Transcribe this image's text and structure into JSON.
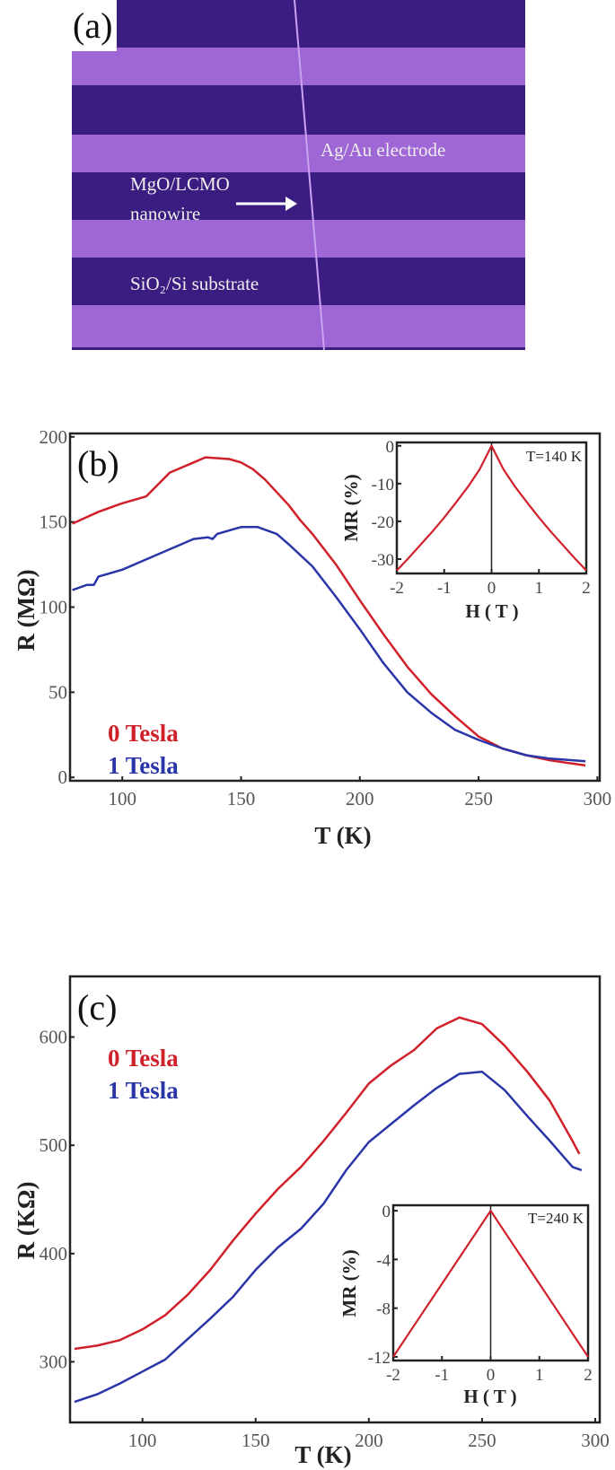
{
  "panel_a": {
    "label": "(a)",
    "electrode_label": "Ag/Au electrode",
    "nanowire_label_line1": "MgO/LCMO",
    "nanowire_label_line2": "nanowire",
    "substrate_label": "SiO₂/Si substrate",
    "colors": {
      "substrate": "#3b1d82",
      "electrode": "#9f66d6",
      "nanowire": "#c9a2f0"
    }
  },
  "chart_data": [
    {
      "type": "line",
      "panel_label": "(b)",
      "xlabel": "T (K)",
      "ylabel": "R (MΩ)",
      "xlim": [
        78,
        301
      ],
      "ylim": [
        -2,
        202
      ],
      "xticks": [
        100,
        150,
        200,
        250,
        300
      ],
      "yticks": [
        0,
        50,
        100,
        150,
        200
      ],
      "grid": false,
      "legend_position": "bottom-left",
      "series": [
        {
          "name": "0 Tesla",
          "color": "#d0202a",
          "x": [
            79,
            90,
            100,
            110,
            120,
            130,
            135,
            145,
            150,
            155,
            160,
            170,
            175,
            180,
            190,
            200,
            210,
            220,
            230,
            240,
            250,
            260,
            270,
            280,
            290,
            295
          ],
          "y": [
            149,
            156,
            161,
            165,
            179,
            185,
            188,
            187,
            185,
            181,
            175,
            160,
            151,
            143,
            125,
            104,
            84,
            65,
            49,
            36,
            24,
            17,
            13,
            10,
            8,
            7
          ]
        },
        {
          "name": "1 Tesla",
          "color": "#2a36a8",
          "x": [
            79,
            85,
            88,
            90,
            100,
            110,
            120,
            130,
            136,
            138,
            140,
            150,
            157,
            165,
            170,
            180,
            190,
            200,
            210,
            220,
            230,
            240,
            250,
            260,
            270,
            280,
            290,
            295
          ],
          "y": [
            110,
            113,
            113,
            118,
            122,
            128,
            134,
            140,
            141,
            140,
            143,
            147,
            147,
            143,
            137,
            124,
            106,
            87,
            67,
            50,
            38,
            28,
            22,
            17,
            13,
            11,
            10,
            9.5
          ]
        }
      ]
    },
    {
      "type": "line",
      "annotation": "T=140 K",
      "xlabel": "H ( T )",
      "ylabel": "MR (%)",
      "xlim": [
        -2,
        2
      ],
      "ylim": [
        -33.8,
        0.9
      ],
      "xticks": [
        -2,
        -1,
        0,
        1,
        2
      ],
      "yticks": [
        0,
        -10,
        -20,
        -30
      ],
      "series": [
        {
          "color": "#d0202a",
          "x": [
            -2,
            -1.75,
            -1.5,
            -1.25,
            -1,
            -0.75,
            -0.5,
            -0.25,
            0,
            0.25,
            0.5,
            0.75,
            1,
            1.25,
            1.5,
            1.75,
            2
          ],
          "y": [
            -33,
            -29.7,
            -26.2,
            -22.7,
            -19,
            -15,
            -10.9,
            -6.2,
            0,
            -6.2,
            -10.9,
            -15,
            -19,
            -22.7,
            -26.2,
            -29.7,
            -33
          ]
        }
      ]
    },
    {
      "type": "line",
      "panel_label": "(c)",
      "xlabel": "T (K)",
      "ylabel": "R (KΩ)",
      "xlim": [
        68,
        302
      ],
      "ylim": [
        244,
        656
      ],
      "xticks": [
        100,
        150,
        200,
        250,
        300
      ],
      "yticks": [
        300,
        400,
        500,
        600
      ],
      "grid": false,
      "legend_position": "top-left",
      "series": [
        {
          "name": "0 Tesla",
          "color": "#d0202a",
          "x": [
            70,
            80,
            90,
            100,
            110,
            120,
            130,
            140,
            150,
            160,
            170,
            180,
            190,
            200,
            210,
            220,
            230,
            240,
            250,
            260,
            270,
            280,
            290,
            293
          ],
          "y": [
            312,
            315,
            320,
            330,
            343,
            362,
            385,
            412,
            437,
            460,
            480,
            504,
            530,
            557,
            574,
            588,
            608,
            618,
            612,
            592,
            568,
            541,
            504,
            492
          ]
        },
        {
          "name": "1 Tesla",
          "color": "#2a36a8",
          "x": [
            70,
            80,
            90,
            100,
            110,
            120,
            130,
            140,
            150,
            160,
            170,
            180,
            190,
            200,
            210,
            220,
            230,
            240,
            250,
            260,
            270,
            280,
            290,
            294
          ],
          "y": [
            263,
            270,
            280,
            291,
            302,
            321,
            340,
            360,
            385,
            406,
            423,
            446,
            477,
            503,
            520,
            537,
            553,
            566,
            568,
            551,
            527,
            504,
            480,
            477
          ]
        }
      ]
    },
    {
      "type": "line",
      "annotation": "T=240 K",
      "xlabel": "H ( T )",
      "ylabel": "MR (%)",
      "xlim": [
        -2,
        2
      ],
      "ylim": [
        -12.3,
        0.45
      ],
      "xticks": [
        -2,
        -1,
        0,
        1,
        2
      ],
      "yticks": [
        0,
        -4,
        -8,
        -12
      ],
      "series": [
        {
          "color": "#d0202a",
          "x": [
            -2,
            -1.5,
            -1,
            -0.5,
            0,
            0.5,
            1,
            1.5,
            2
          ],
          "y": [
            -12,
            -9,
            -6,
            -3,
            0,
            -3,
            -6,
            -9,
            -12
          ]
        }
      ]
    }
  ]
}
